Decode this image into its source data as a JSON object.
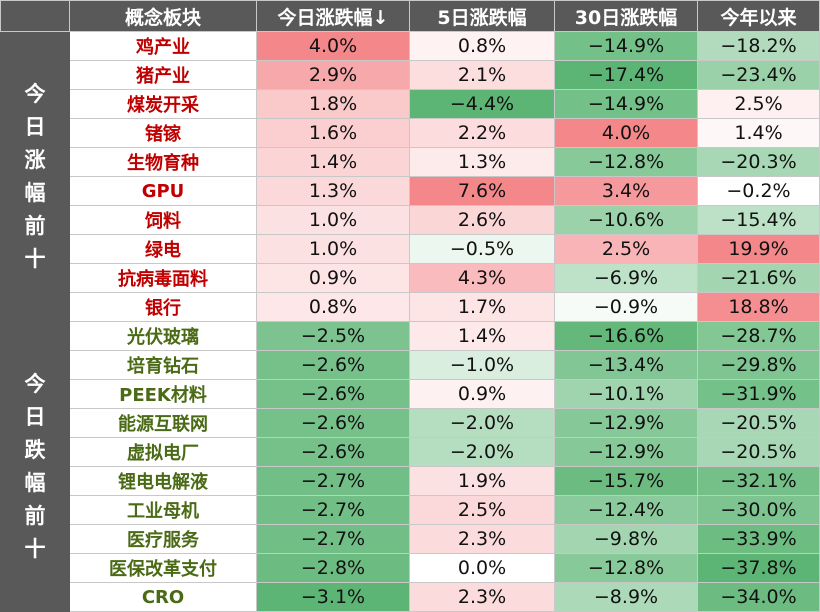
{
  "headers": [
    "概念板块",
    "今日涨跌幅↓",
    "5日涨跌幅",
    "30日涨跌幅",
    "今年以来"
  ],
  "groups": [
    {
      "label": "今日涨幅前十",
      "chars": [
        "今",
        "日",
        "涨",
        "幅",
        "前",
        "十"
      ],
      "type": "up",
      "rows": [
        {
          "name": "鸡产业",
          "d1": "4.0%",
          "d5": "0.8%",
          "d30": "−14.9%",
          "ytd": "−18.2%"
        },
        {
          "name": "猪产业",
          "d1": "2.9%",
          "d5": "2.1%",
          "d30": "−17.4%",
          "ytd": "−23.4%"
        },
        {
          "name": "煤炭开采",
          "d1": "1.8%",
          "d5": "−4.4%",
          "d30": "−14.9%",
          "ytd": "2.5%"
        },
        {
          "name": "锗镓",
          "d1": "1.6%",
          "d5": "2.2%",
          "d30": "4.0%",
          "ytd": "1.4%"
        },
        {
          "name": "生物育种",
          "d1": "1.4%",
          "d5": "1.3%",
          "d30": "−12.8%",
          "ytd": "−20.3%"
        },
        {
          "name": "GPU",
          "d1": "1.3%",
          "d5": "7.6%",
          "d30": "3.4%",
          "ytd": "−0.2%"
        },
        {
          "name": "饲料",
          "d1": "1.0%",
          "d5": "2.6%",
          "d30": "−10.6%",
          "ytd": "−15.4%"
        },
        {
          "name": "绿电",
          "d1": "1.0%",
          "d5": "−0.5%",
          "d30": "2.5%",
          "ytd": "19.9%"
        },
        {
          "name": "抗病毒面料",
          "d1": "0.9%",
          "d5": "4.3%",
          "d30": "−6.9%",
          "ytd": "−21.6%"
        },
        {
          "name": "银行",
          "d1": "0.8%",
          "d5": "1.7%",
          "d30": "−0.9%",
          "ytd": "18.8%"
        }
      ]
    },
    {
      "label": "今日跌幅前十",
      "chars": [
        "今",
        "日",
        "跌",
        "幅",
        "前",
        "十"
      ],
      "type": "down",
      "rows": [
        {
          "name": "光伏玻璃",
          "d1": "−2.5%",
          "d5": "1.4%",
          "d30": "−16.6%",
          "ytd": "−28.7%"
        },
        {
          "name": "培育钻石",
          "d1": "−2.6%",
          "d5": "−1.0%",
          "d30": "−13.4%",
          "ytd": "−29.8%"
        },
        {
          "name": "PEEK材料",
          "d1": "−2.6%",
          "d5": "0.9%",
          "d30": "−10.1%",
          "ytd": "−31.9%"
        },
        {
          "name": "能源互联网",
          "d1": "−2.6%",
          "d5": "−2.0%",
          "d30": "−12.9%",
          "ytd": "−20.5%"
        },
        {
          "name": "虚拟电厂",
          "d1": "−2.6%",
          "d5": "−2.0%",
          "d30": "−12.9%",
          "ytd": "−20.5%"
        },
        {
          "name": "锂电电解液",
          "d1": "−2.7%",
          "d5": "1.9%",
          "d30": "−15.7%",
          "ytd": "−32.1%"
        },
        {
          "name": "工业母机",
          "d1": "−2.7%",
          "d5": "2.5%",
          "d30": "−12.4%",
          "ytd": "−30.0%"
        },
        {
          "name": "医疗服务",
          "d1": "−2.7%",
          "d5": "2.3%",
          "d30": "−9.8%",
          "ytd": "−33.9%"
        },
        {
          "name": "医保改革支付",
          "d1": "−2.8%",
          "d5": "0.0%",
          "d30": "−12.8%",
          "ytd": "−37.8%"
        },
        {
          "name": "CRO",
          "d1": "−3.1%",
          "d5": "2.3%",
          "d30": "−8.9%",
          "ytd": "−34.0%"
        }
      ]
    }
  ],
  "colors": {
    "header_bg": "#595959",
    "up_text": "#c00000",
    "down_text": "#4b6a15",
    "pos_strong": "#f4878a",
    "neg_strong": "#5cb574"
  }
}
